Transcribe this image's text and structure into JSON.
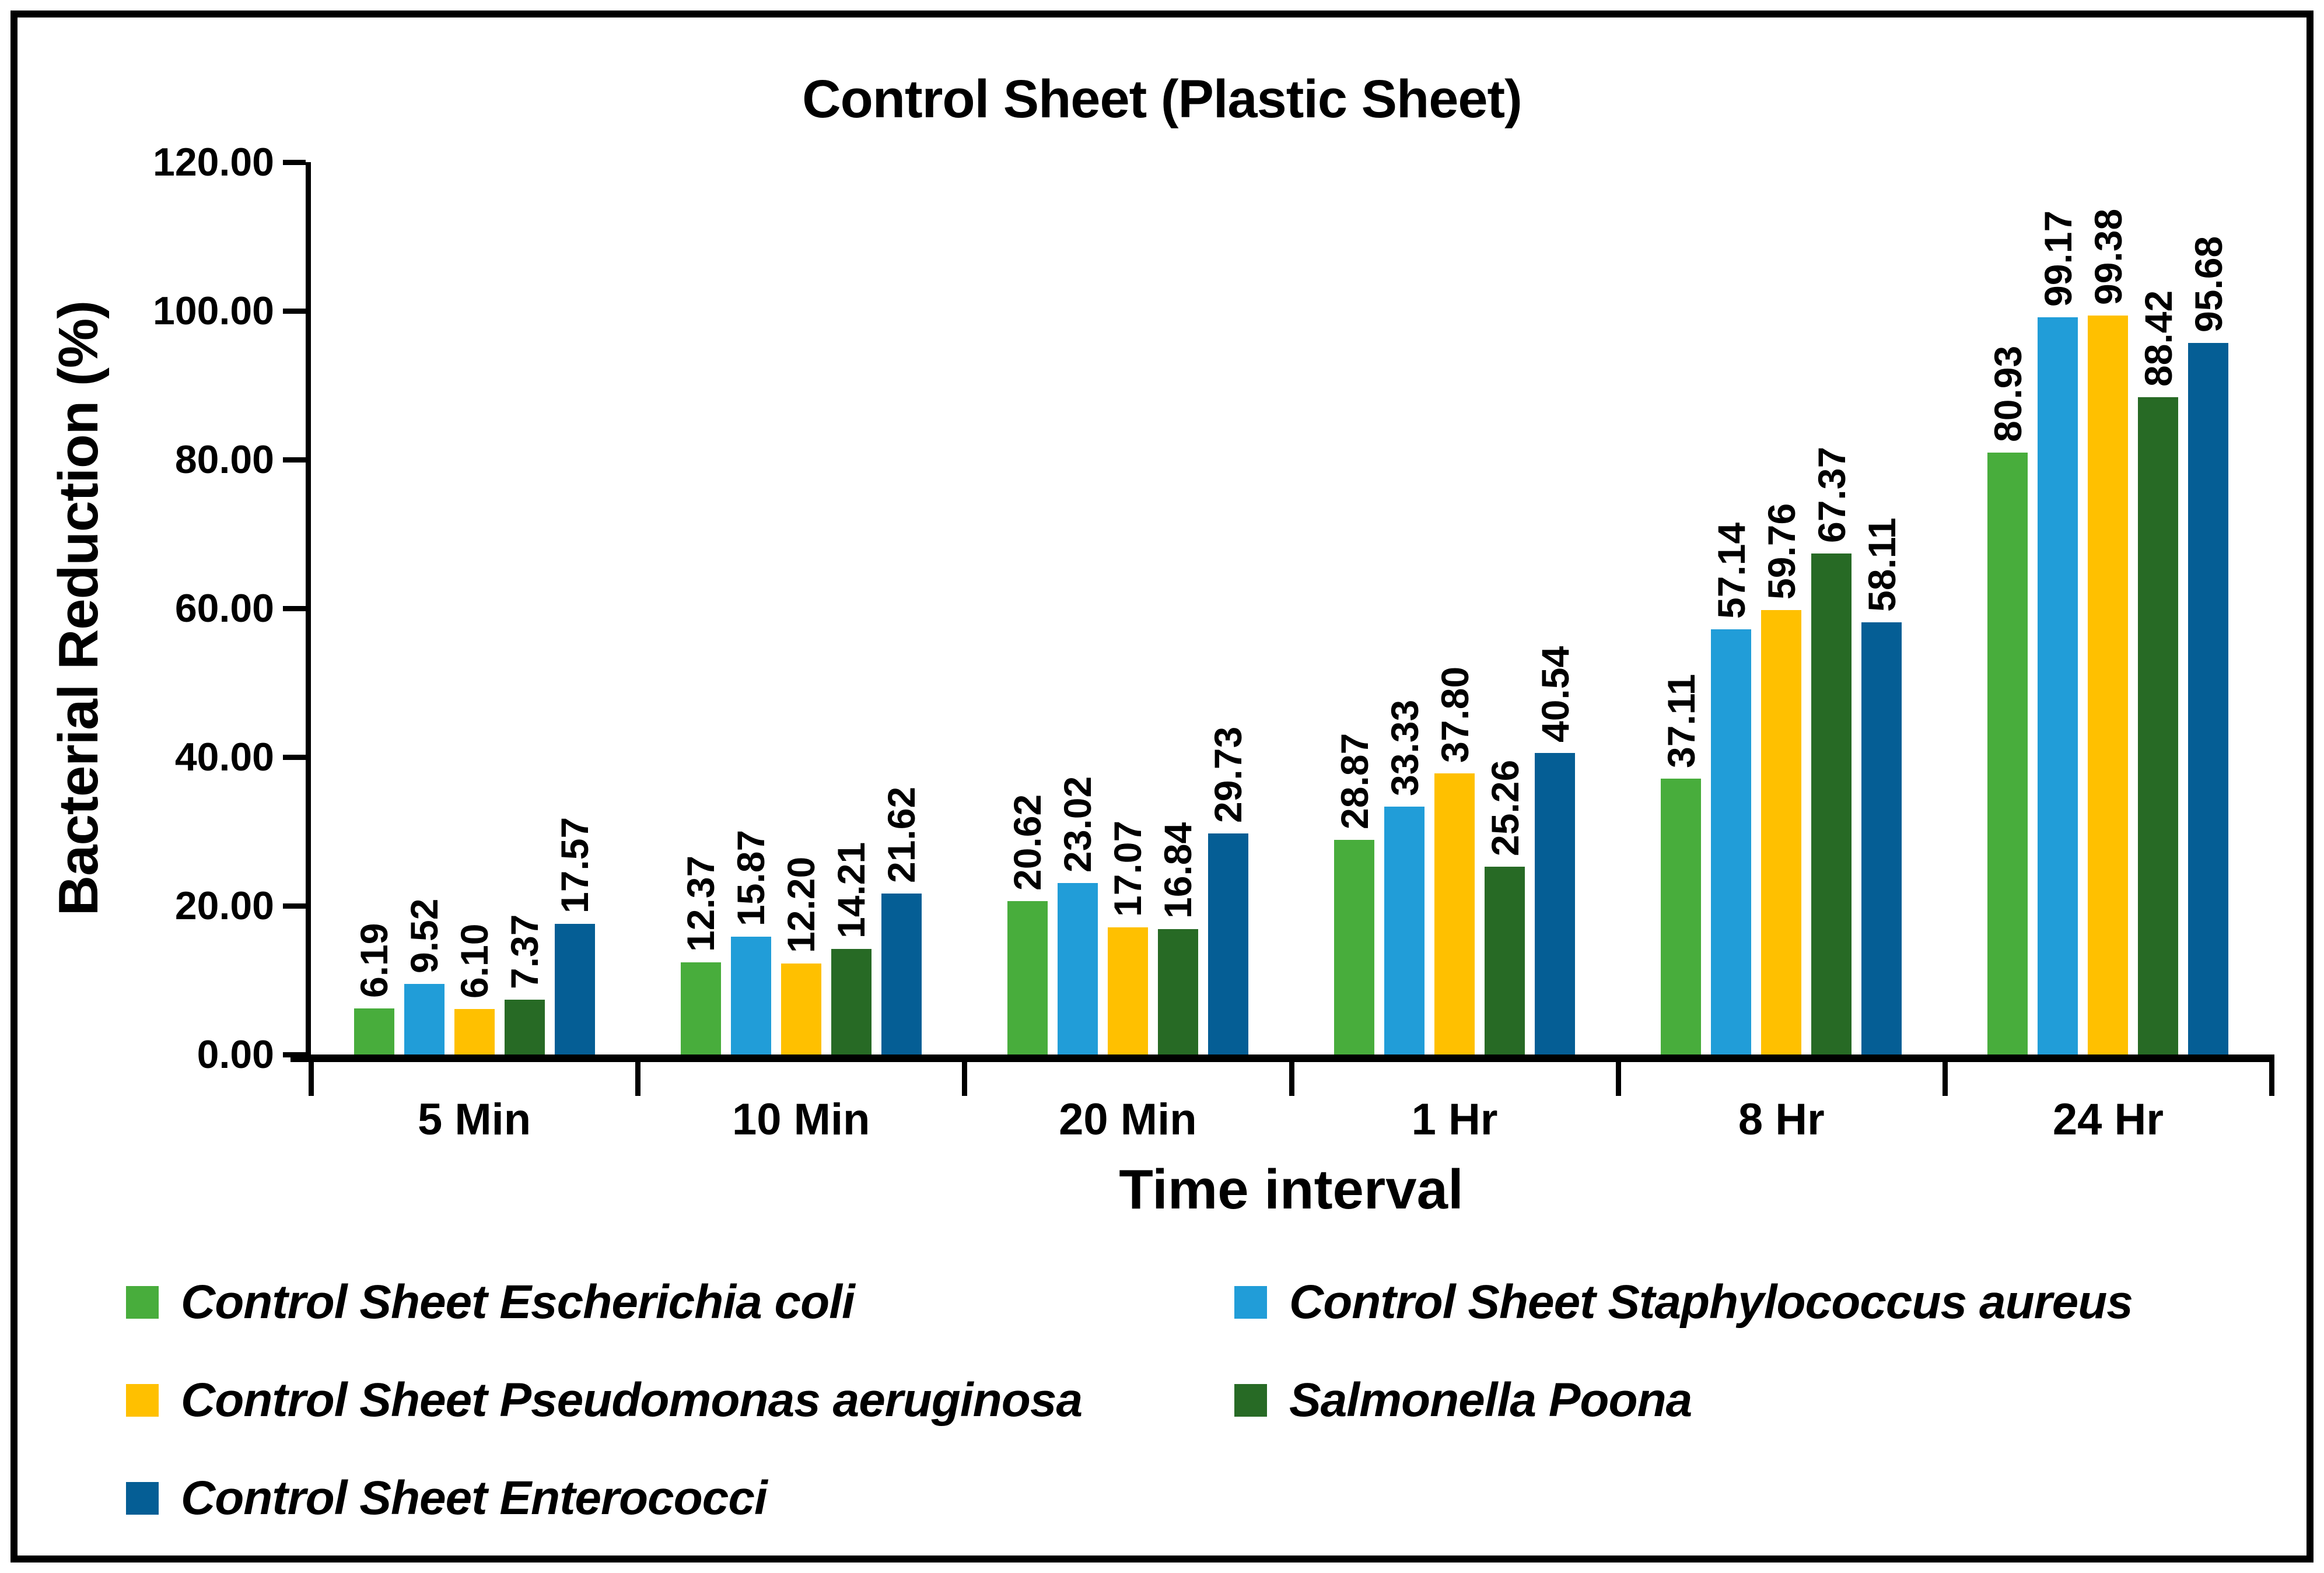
{
  "title": "Control Sheet (Plastic Sheet)",
  "chart_data": {
    "type": "bar",
    "title": "Control Sheet (Plastic Sheet)",
    "xlabel": "Time interval",
    "ylabel": "Bacterial Reduction (%)",
    "ylim": [
      0,
      120
    ],
    "y_tick_step": 20,
    "y_tick_labels": [
      "0.00",
      "20.00",
      "40.00",
      "60.00",
      "80.00",
      "100.00",
      "120.00"
    ],
    "categories": [
      "5 Min",
      "10 Min",
      "20 Min",
      "1 Hr",
      "8 Hr",
      "24 Hr"
    ],
    "grid": false,
    "legend_position": "bottom",
    "value_label_decimals": 2,
    "value_label_rotation": "vertical-bottom-to-top",
    "series": [
      {
        "name": "Control Sheet Escherichia coli",
        "color": "#48AD3C",
        "values": [
          6.19,
          12.37,
          20.62,
          28.87,
          37.11,
          80.93
        ]
      },
      {
        "name": "Control Sheet Staphylococcus aureus",
        "color": "#219DD8",
        "values": [
          9.52,
          15.87,
          23.02,
          33.33,
          57.14,
          99.17
        ]
      },
      {
        "name": "Control Sheet Pseudomonas aeruginosa",
        "color": "#FFC000",
        "values": [
          6.1,
          12.2,
          17.07,
          37.8,
          59.76,
          99.38
        ]
      },
      {
        "name": "Salmonella Poona",
        "color": "#276A25",
        "values": [
          7.37,
          14.21,
          16.84,
          25.26,
          67.37,
          88.42
        ]
      },
      {
        "name": "Control Sheet Enterococci",
        "color": "#055E95",
        "values": [
          17.57,
          21.62,
          29.73,
          40.54,
          58.11,
          95.68
        ]
      }
    ]
  }
}
